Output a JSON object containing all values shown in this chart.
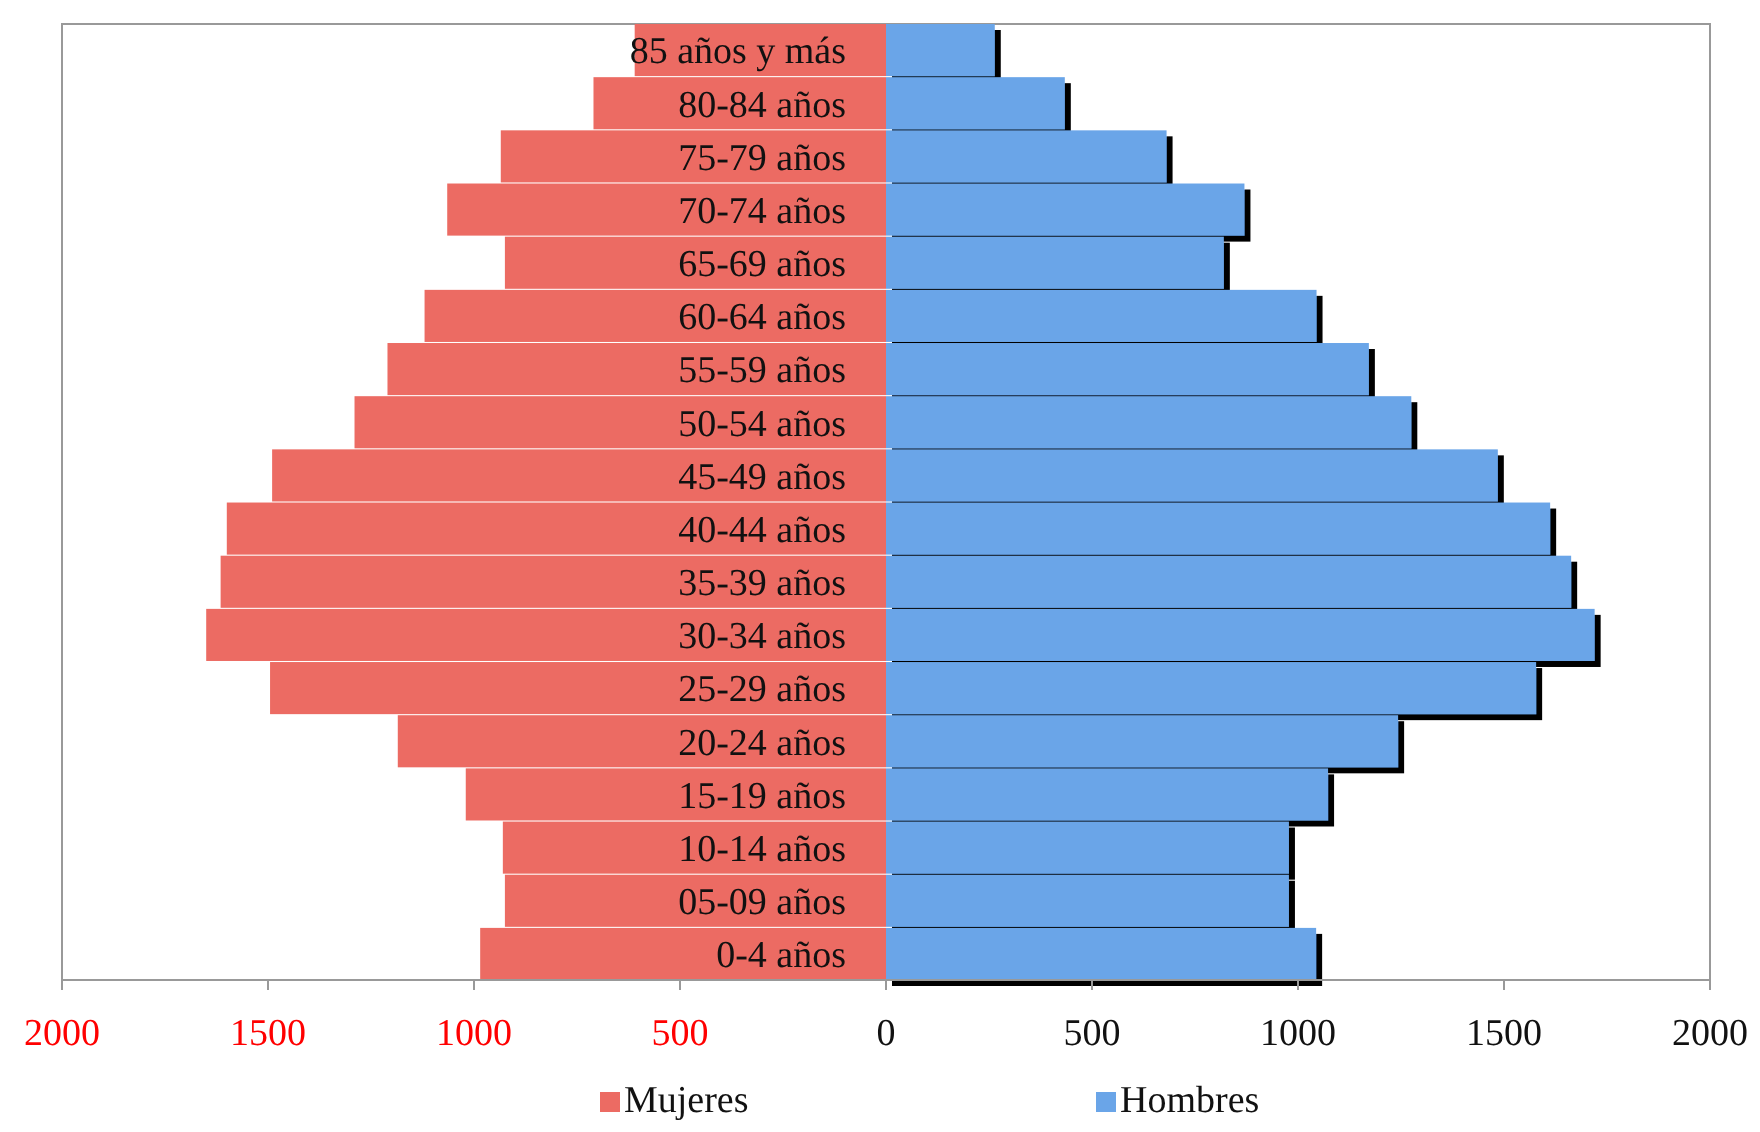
{
  "chart_data": {
    "type": "bar",
    "orientation": "horizontal",
    "stacked": true,
    "categories": [
      "85 años y más",
      "80-84 años",
      "75-79 años",
      "70-74 años",
      "65-69 años",
      "60-64 años",
      "55-59 años",
      "50-54 años",
      "45-49 años",
      "40-44 años",
      "35-39 años",
      "30-34 años",
      "25-29 años",
      "20-24 años",
      "15-19 años",
      "10-14 años",
      "05-09 años",
      "0-4 años"
    ],
    "series": [
      {
        "name": "Mujeres",
        "color": "#ec6b63",
        "values": [
          -610,
          -710,
          -935,
          -1065,
          -925,
          -1120,
          -1210,
          -1290,
          -1490,
          -1600,
          -1615,
          -1650,
          -1495,
          -1185,
          -1020,
          -930,
          -925,
          -985
        ]
      },
      {
        "name": "Hombres",
        "color": "#6aa5e8",
        "values": [
          264,
          434,
          681,
          870,
          820,
          1045,
          1172,
          1275,
          1485,
          1612,
          1663,
          1720,
          1578,
          1243,
          1073,
          978,
          978,
          1044
        ]
      }
    ],
    "xlim": [
      -2000,
      2000
    ],
    "xticks": [
      {
        "value": -2000,
        "label": "2000"
      },
      {
        "value": -1500,
        "label": "1500"
      },
      {
        "value": -1000,
        "label": "1000"
      },
      {
        "value": -500,
        "label": "500"
      },
      0,
      500,
      1000,
      1500,
      2000
    ],
    "grid": false,
    "legend": "bottom"
  }
}
